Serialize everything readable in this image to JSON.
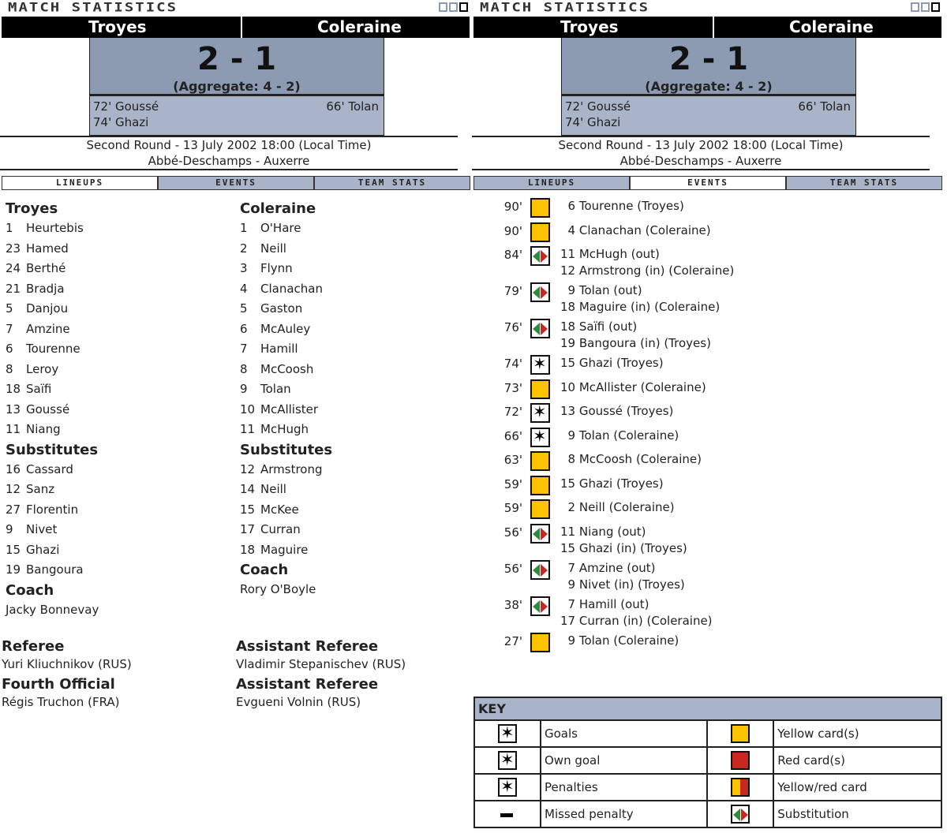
{
  "title": "MATCH STATISTICS",
  "home": "Troyes",
  "away": "Coleraine",
  "score": "2 - 1",
  "aggregate": "(Aggregate: 4 - 2)",
  "home_scorers": [
    "72' Goussé",
    "74' Ghazi"
  ],
  "away_scorers": [
    "66' Tolan"
  ],
  "round_info": "Second Round - 13 July 2002 18:00 (Local Time)",
  "venue": "Abbé-Deschamps - Auxerre",
  "tabs": [
    "LINEUPS",
    "EVENTS",
    "TEAM STATS"
  ],
  "lineups": [
    {
      "team": "Troyes",
      "players": [
        [
          "1",
          "Heurtebis"
        ],
        [
          "23",
          "Hamed"
        ],
        [
          "24",
          "Berthé"
        ],
        [
          "21",
          "Bradja"
        ],
        [
          "5",
          "Danjou"
        ],
        [
          "7",
          "Amzine"
        ],
        [
          "6",
          "Tourenne"
        ],
        [
          "8",
          "Leroy"
        ],
        [
          "18",
          "Saïfi"
        ],
        [
          "13",
          "Goussé"
        ],
        [
          "11",
          "Niang"
        ]
      ],
      "subs_label": "Substitutes",
      "subs": [
        [
          "16",
          "Cassard"
        ],
        [
          "12",
          "Sanz"
        ],
        [
          "27",
          "Florentin"
        ],
        [
          "9",
          "Nivet"
        ],
        [
          "15",
          "Ghazi"
        ],
        [
          "19",
          "Bangoura"
        ]
      ],
      "coach_label": "Coach",
      "coach": "Jacky Bonnevay"
    },
    {
      "team": "Coleraine",
      "players": [
        [
          "1",
          "O'Hare"
        ],
        [
          "2",
          "Neill"
        ],
        [
          "3",
          "Flynn"
        ],
        [
          "4",
          "Clanachan"
        ],
        [
          "5",
          "Gaston"
        ],
        [
          "6",
          "McAuley"
        ],
        [
          "7",
          "Hamill"
        ],
        [
          "8",
          "McCoosh"
        ],
        [
          "9",
          "Tolan"
        ],
        [
          "10",
          "McAllister"
        ],
        [
          "11",
          "McHugh"
        ]
      ],
      "subs_label": "Substitutes",
      "subs": [
        [
          "12",
          "Armstrong"
        ],
        [
          "14",
          "Neill"
        ],
        [
          "15",
          "McKee"
        ],
        [
          "17",
          "Curran"
        ],
        [
          "18",
          "Maguire"
        ]
      ],
      "coach_label": "Coach",
      "coach": "Rory O'Boyle"
    }
  ],
  "officials": [
    {
      "role": "Referee",
      "name": "Yuri Kliuchnikov (RUS)"
    },
    {
      "role": "Assistant Referee",
      "name": "Vladimir Stepanischev (RUS)"
    },
    {
      "role": "Fourth Official",
      "name": "Régis Truchon (FRA)"
    },
    {
      "role": "Assistant Referee",
      "name": "Evgueni Volnin (RUS)"
    }
  ],
  "events": [
    {
      "time": "90'",
      "icon": "yellow-card",
      "text": "  6 Tourenne (Troyes)"
    },
    {
      "time": "90'",
      "icon": "yellow-card",
      "text": "  4 Clanachan (Coleraine)"
    },
    {
      "time": "84'",
      "icon": "substitution",
      "text": "11 McHugh (out)\n12 Armstrong (in) (Coleraine)"
    },
    {
      "time": "79'",
      "icon": "substitution",
      "text": "  9 Tolan (out)\n18 Maguire (in) (Coleraine)"
    },
    {
      "time": "76'",
      "icon": "substitution",
      "text": "18 Saïfi (out)\n19 Bangoura (in) (Troyes)"
    },
    {
      "time": "74'",
      "icon": "goal",
      "text": "15 Ghazi (Troyes)"
    },
    {
      "time": "73'",
      "icon": "yellow-card",
      "text": "10 McAllister (Coleraine)"
    },
    {
      "time": "72'",
      "icon": "goal",
      "text": "13 Goussé (Troyes)"
    },
    {
      "time": "66'",
      "icon": "goal",
      "text": "  9 Tolan (Coleraine)"
    },
    {
      "time": "63'",
      "icon": "yellow-card",
      "text": "  8 McCoosh (Coleraine)"
    },
    {
      "time": "59'",
      "icon": "yellow-card",
      "text": "15 Ghazi (Troyes)"
    },
    {
      "time": "59'",
      "icon": "yellow-card",
      "text": "  2 Neill (Coleraine)"
    },
    {
      "time": "56'",
      "icon": "substitution",
      "text": "11 Niang (out)\n15 Ghazi (in) (Troyes)"
    },
    {
      "time": "56'",
      "icon": "substitution",
      "text": "  7 Amzine (out)\n  9 Nivet (in) (Troyes)"
    },
    {
      "time": "38'",
      "icon": "substitution",
      "text": "  7 Hamill (out)\n17 Curran (in) (Coleraine)"
    },
    {
      "time": "27'",
      "icon": "yellow-card",
      "text": "  9 Tolan (Coleraine)"
    }
  ],
  "key": {
    "title": "KEY",
    "rows": [
      [
        {
          "icon": "goal",
          "label": "Goals"
        },
        {
          "icon": "yellow-card",
          "label": "Yellow card(s)"
        }
      ],
      [
        {
          "icon": "own-goal",
          "label": "Own goal"
        },
        {
          "icon": "red-card",
          "label": "Red card(s)"
        }
      ],
      [
        {
          "icon": "penalty",
          "label": "Penalties"
        },
        {
          "icon": "yellow-red-card",
          "label": "Yellow/red card"
        }
      ],
      [
        {
          "icon": "missed-penalty",
          "label": "Missed penalty"
        },
        {
          "icon": "substitution",
          "label": "Substitution"
        }
      ]
    ]
  },
  "colors": {
    "yellow": "#fbc300",
    "red": "#c8281e",
    "green": "#2f8a3a",
    "score_bg": "#8c9ab2",
    "scorers_bg": "#a9b4c8"
  }
}
